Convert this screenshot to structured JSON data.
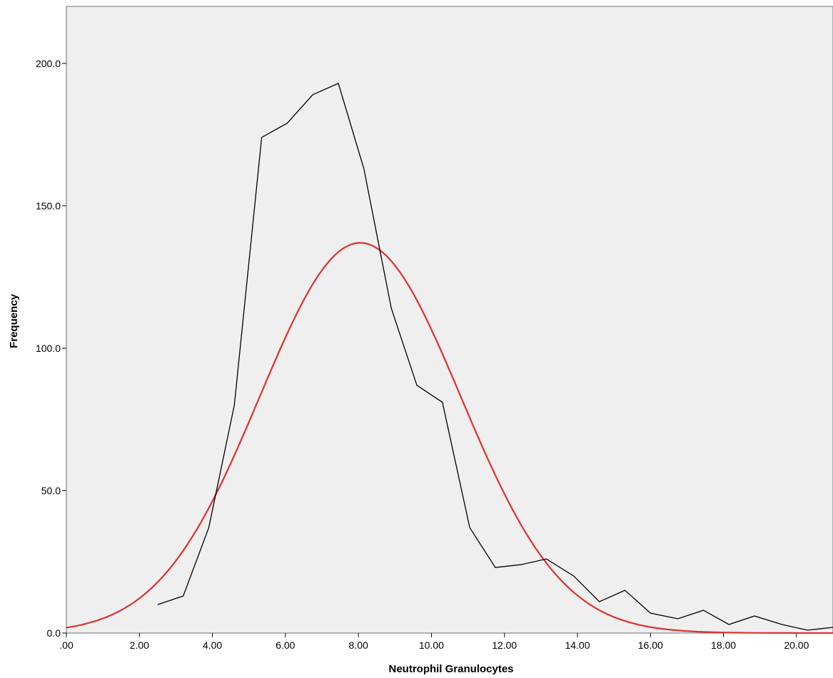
{
  "chart_data": {
    "type": "line",
    "title": "",
    "xlabel": "Neutrophil Granulocytes",
    "ylabel": "Frequency",
    "xlim": [
      0,
      21
    ],
    "ylim": [
      0,
      220
    ],
    "x_ticks": [
      0,
      2,
      4,
      6,
      8,
      10,
      12,
      14,
      16,
      18,
      20
    ],
    "x_tick_labels": [
      ".00",
      "2.00",
      "4.00",
      "6.00",
      "8.00",
      "10.00",
      "12.00",
      "14.00",
      "16.00",
      "18.00",
      "20.00"
    ],
    "y_ticks": [
      0,
      50,
      100,
      150,
      200
    ],
    "y_tick_labels": [
      "0.0",
      "50.0",
      "100.0",
      "150.0",
      "200.0"
    ],
    "grid": false,
    "colors": {
      "plot_background": "#efefef",
      "observed": "#000000",
      "normal_curve": "#e03030"
    },
    "series": [
      {
        "kind": "frequency-polygon",
        "x": [
          2.5,
          3.2,
          3.9,
          4.6,
          5.35,
          6.05,
          6.75,
          7.45,
          8.15,
          8.9,
          9.6,
          10.3,
          11.05,
          11.75,
          12.45,
          13.15,
          13.9,
          14.6,
          15.3,
          16.0,
          16.75,
          17.45,
          18.15,
          18.85,
          19.6,
          20.3,
          21.0
        ],
        "y": [
          10,
          13,
          37,
          80,
          174,
          179,
          189,
          193,
          163,
          114,
          87,
          81,
          37,
          23,
          24,
          26,
          20,
          11,
          15,
          7,
          5,
          8,
          3,
          6,
          3,
          1,
          2
        ]
      },
      {
        "kind": "normal-curve",
        "peak": 137,
        "mean": 8.05,
        "sd": 2.75
      }
    ]
  }
}
